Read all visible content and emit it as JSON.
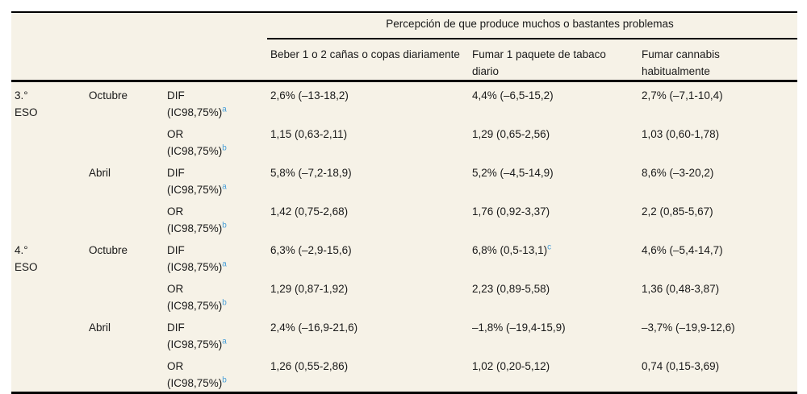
{
  "colors": {
    "panel_bg": "#f6f2e7",
    "text": "#1a1a1a",
    "footnote_marker": "#4ba0d8",
    "rule": "#000000"
  },
  "table": {
    "span_header": "Percepción de que produce muchos o bastantes problemas",
    "column_headers": [
      "Beber 1 o 2 cañas o copas diariamente",
      "Fumar 1 paquete de tabaco diario",
      "Fumar cannabis habitualmente"
    ],
    "rows": [
      {
        "grade": "3.°\nESO",
        "month": "Octubre",
        "stat": "DIF",
        "ci": "(IC98,75%)",
        "sup": "a",
        "values": [
          {
            "text": "2,6% (–13-18,2)",
            "sup": ""
          },
          {
            "text": "4,4% (–6,5-15,2)",
            "sup": ""
          },
          {
            "text": "2,7% (–7,1-10,4)",
            "sup": ""
          }
        ]
      },
      {
        "grade": "",
        "month": "",
        "stat": "OR",
        "ci": "(IC98,75%)",
        "sup": "b",
        "values": [
          {
            "text": "1,15 (0,63-2,11)",
            "sup": ""
          },
          {
            "text": "1,29 (0,65-2,56)",
            "sup": ""
          },
          {
            "text": "1,03 (0,60-1,78)",
            "sup": ""
          }
        ]
      },
      {
        "grade": "",
        "month": "Abril",
        "stat": "DIF",
        "ci": "(IC98,75%)",
        "sup": "a",
        "values": [
          {
            "text": "5,8% (–7,2-18,9)",
            "sup": ""
          },
          {
            "text": "5,2% (–4,5-14,9)",
            "sup": ""
          },
          {
            "text": "8,6% (–3-20,2)",
            "sup": ""
          }
        ]
      },
      {
        "grade": "",
        "month": "",
        "stat": "OR",
        "ci": "(IC98,75%)",
        "sup": "b",
        "values": [
          {
            "text": "1,42 (0,75-2,68)",
            "sup": ""
          },
          {
            "text": "1,76 (0,92-3,37)",
            "sup": ""
          },
          {
            "text": "2,2 (0,85-5,67)",
            "sup": ""
          }
        ]
      },
      {
        "grade": "4.°\nESO",
        "month": "Octubre",
        "stat": "DIF",
        "ci": "(IC98,75%)",
        "sup": "a",
        "values": [
          {
            "text": "6,3% (–2,9-15,6)",
            "sup": ""
          },
          {
            "text": "6,8% (0,5-13,1)",
            "sup": "c"
          },
          {
            "text": "4,6% (–5,4-14,7)",
            "sup": ""
          }
        ]
      },
      {
        "grade": "",
        "month": "",
        "stat": "OR",
        "ci": "(IC98,75%)",
        "sup": "b",
        "values": [
          {
            "text": "1,29 (0,87-1,92)",
            "sup": ""
          },
          {
            "text": "2,23 (0,89-5,58)",
            "sup": ""
          },
          {
            "text": "1,36 (0,48-3,87)",
            "sup": ""
          }
        ]
      },
      {
        "grade": "",
        "month": "Abril",
        "stat": "DIF",
        "ci": "(IC98,75%)",
        "sup": "a",
        "values": [
          {
            "text": "2,4% (–16,9-21,6)",
            "sup": ""
          },
          {
            "text": "–1,8% (–19,4-15,9)",
            "sup": ""
          },
          {
            "text": "–3,7% (–19,9-12,6)",
            "sup": ""
          }
        ]
      },
      {
        "grade": "",
        "month": "",
        "stat": "OR",
        "ci": "(IC98,75%)",
        "sup": "b",
        "values": [
          {
            "text": "1,26 (0,55-2,86)",
            "sup": ""
          },
          {
            "text": "1,02 (0,20-5,12)",
            "sup": ""
          },
          {
            "text": "0,74 (0,15-3,69)",
            "sup": ""
          }
        ]
      }
    ]
  }
}
